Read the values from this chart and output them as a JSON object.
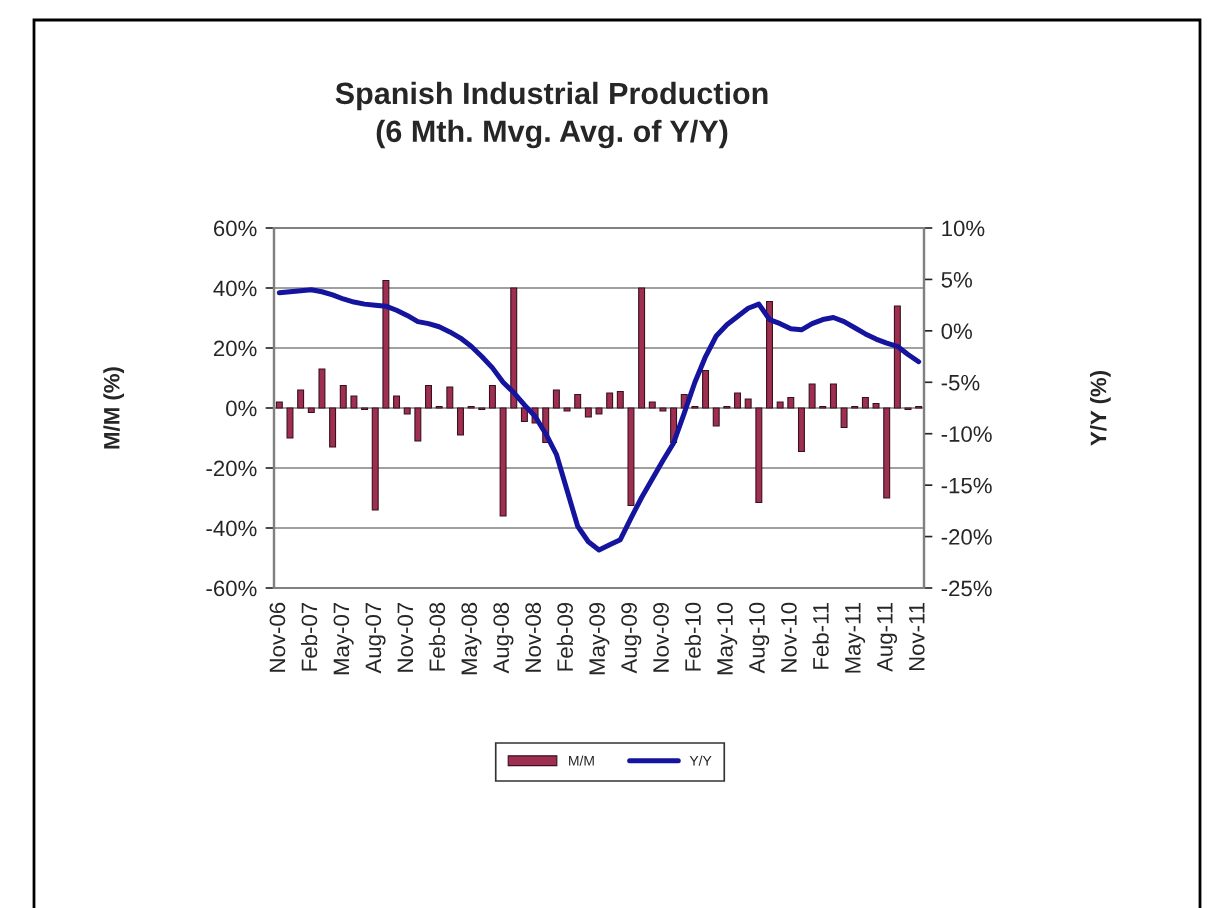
{
  "chart_data": {
    "type": "bar",
    "title": "Spanish Industrial Production",
    "subtitle": "(6 Mth. Mvg. Avg. of Y/Y)",
    "ylabel": "M/M (%)",
    "y2label": "Y/Y (%)",
    "categories": [
      "Nov-06",
      null,
      null,
      "Feb-07",
      null,
      null,
      "May-07",
      null,
      null,
      "Aug-07",
      null,
      null,
      "Nov-07",
      null,
      null,
      "Feb-08",
      null,
      null,
      "May-08",
      null,
      null,
      "Aug-08",
      null,
      null,
      "Nov-08",
      null,
      null,
      "Feb-09",
      null,
      null,
      "May-09",
      null,
      null,
      "Aug-09",
      null,
      null,
      "Nov-09",
      null,
      null,
      "Feb-10",
      null,
      null,
      "May-10",
      null,
      null,
      "Aug-10",
      null,
      null,
      "Nov-10",
      null,
      null,
      "Feb-11",
      null,
      null,
      "May-11",
      null,
      null,
      "Aug-11",
      null,
      null,
      "Nov-11"
    ],
    "series": [
      {
        "name": "M/M",
        "color": "#9e2f50",
        "values": [
          2,
          -10,
          6,
          -1.5,
          13,
          -13,
          7.5,
          4,
          -0.5,
          -34,
          42.5,
          4,
          -2,
          -11,
          7.5,
          0.5,
          7,
          -9,
          0.5,
          -0.5,
          7.5,
          -36,
          40,
          -4.5,
          -5,
          -11.5,
          6,
          -1,
          4.5,
          -3,
          -2,
          5,
          5.5,
          -32.5,
          40,
          2,
          -1,
          -11.5,
          4.5,
          0.5,
          12.5,
          -6,
          0.5,
          5,
          3,
          -31.5,
          35.5,
          2,
          3.5,
          -14.5,
          8,
          0.5,
          8,
          -6.5,
          0.5,
          3.5,
          1.5,
          -30,
          34,
          -0.5,
          0.5
        ]
      },
      {
        "name": "Y/Y",
        "type": "line",
        "axis": "y2",
        "color": "#14149e",
        "values": [
          3.7,
          3.8,
          3.9,
          4.0,
          3.8,
          3.5,
          3.1,
          2.8,
          2.6,
          2.5,
          2.4,
          2.0,
          1.5,
          0.9,
          0.7,
          0.4,
          -0.1,
          -0.7,
          -1.5,
          -2.5,
          -3.6,
          -5.0,
          -6.0,
          -7.2,
          -8.3,
          -10.0,
          -12.0,
          -15.5,
          -19.0,
          -20.5,
          -21.3,
          -20.8,
          -20.3,
          -18.2,
          -16.2,
          -14.4,
          -12.6,
          -10.9,
          -8.0,
          -5.0,
          -2.5,
          -0.5,
          0.6,
          1.4,
          2.2,
          2.6,
          1.1,
          0.7,
          0.2,
          0.1,
          0.7,
          1.1,
          1.3,
          0.9,
          0.3,
          -0.3,
          -0.8,
          -1.2,
          -1.5,
          -2.3,
          -3.0
        ]
      }
    ],
    "ylim": [
      -60,
      60
    ],
    "yticks": [
      {
        "value": -60,
        "label": "-60%"
      },
      {
        "value": -40,
        "label": "-40%"
      },
      {
        "value": -20,
        "label": "-20%"
      },
      {
        "value": 0,
        "label": "0%"
      },
      {
        "value": 20,
        "label": "20%"
      },
      {
        "value": 40,
        "label": "40%"
      },
      {
        "value": 60,
        "label": "60%"
      }
    ],
    "y2lim": [
      -25,
      10
    ],
    "y2ticks": [
      {
        "value": -25,
        "label": "-25%"
      },
      {
        "value": -20,
        "label": "-20%"
      },
      {
        "value": -15,
        "label": "-15%"
      },
      {
        "value": -10,
        "label": "-10%"
      },
      {
        "value": -5,
        "label": "-5%"
      },
      {
        "value": 0,
        "label": "0%"
      },
      {
        "value": 5,
        "label": "5%"
      },
      {
        "value": 10,
        "label": "10%"
      }
    ],
    "grid": "y",
    "legend": "bottom"
  }
}
